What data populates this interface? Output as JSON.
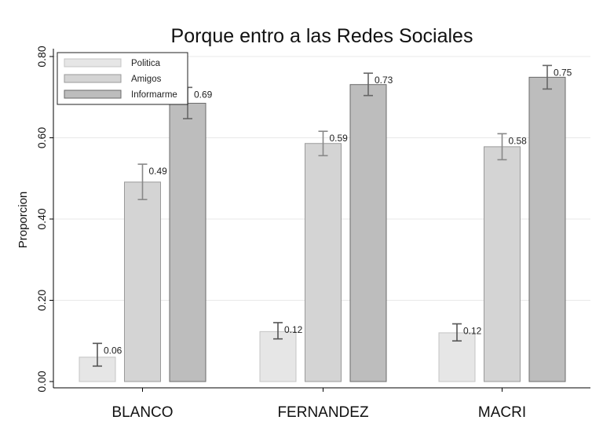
{
  "chart_data": {
    "type": "bar",
    "title": "Porque entro a las Redes Sociales",
    "xlabel": "",
    "ylabel": "Proporcion",
    "ylim": [
      0,
      0.8
    ],
    "yticks": [
      "0.00",
      "0.20",
      "0.40",
      "0.60",
      "0.80"
    ],
    "grid": true,
    "legend_position": "top-left",
    "categories": [
      "BLANCO",
      "FERNANDEZ",
      "MACRI"
    ],
    "series": [
      {
        "name": "Politica",
        "color": "#e6e6e6",
        "stroke": "#c4c4c4",
        "err_color": "#555555",
        "values": [
          0.06,
          0.123,
          0.12
        ],
        "labels": [
          "0.06",
          "0.12",
          "0.12"
        ],
        "ci_low": [
          0.038,
          0.105,
          0.1
        ],
        "ci_high": [
          0.094,
          0.145,
          0.142
        ]
      },
      {
        "name": "Amigos",
        "color": "#d4d4d4",
        "stroke": "#9a9a9a",
        "err_color": "#888888",
        "values": [
          0.491,
          0.586,
          0.578
        ],
        "labels": [
          "0.49",
          "0.59",
          "0.58"
        ],
        "ci_low": [
          0.448,
          0.556,
          0.546
        ],
        "ci_high": [
          0.535,
          0.616,
          0.61
        ]
      },
      {
        "name": "Informarme",
        "color": "#bdbdbd",
        "stroke": "#6a6a6a",
        "err_color": "#666666",
        "values": [
          0.685,
          0.731,
          0.749
        ],
        "labels": [
          "0.69",
          "0.73",
          "0.75"
        ],
        "ci_low": [
          0.647,
          0.704,
          0.72
        ],
        "ci_high": [
          0.724,
          0.759,
          0.778
        ]
      }
    ]
  }
}
